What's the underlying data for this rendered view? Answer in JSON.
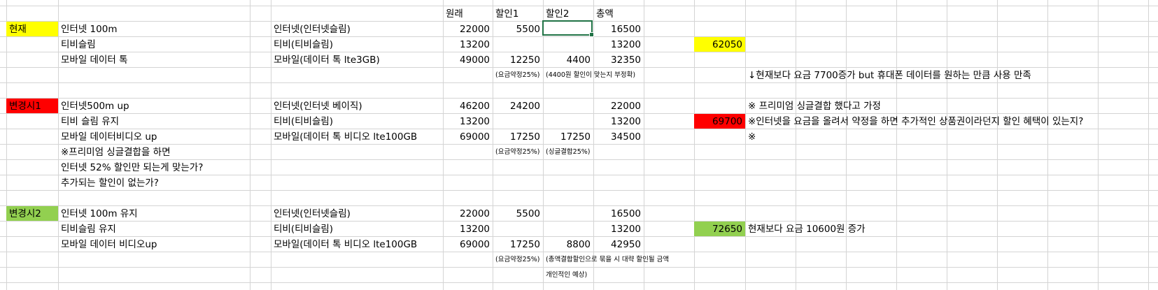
{
  "header": {
    "original": "원래",
    "discount1": "할인1",
    "discount2": "할인2",
    "total": "총액"
  },
  "current": {
    "label": "현재",
    "label_color": "#ffff00",
    "rows": [
      {
        "item": "인터넷 100m",
        "plan": "인터넷(인터넷슬림)",
        "original": "22000",
        "d1": "5500",
        "d2": "",
        "total": "16500"
      },
      {
        "item": "티비슬림",
        "plan": "티비(티비슬림)",
        "original": "13200",
        "d1": "",
        "d2": "",
        "total": "13200"
      },
      {
        "item": "모바일 데이터 톡",
        "plan": "모바일(데이터 톡 lte3GB)",
        "original": "49000",
        "d1": "12250",
        "d2": "4400",
        "total": "32350"
      }
    ],
    "note_d1": "(요금약정25%)",
    "note_d2": "(4400원 할인이 맞는지 부정확)",
    "sum": "62050",
    "comment": "↓현재보다 요금 7700증가 but 휴대폰 데이터를 원하는 만큼 사용 만족"
  },
  "change1": {
    "label": "변경시1",
    "label_color": "#ff0000",
    "rows": [
      {
        "item": "인터넷500m up",
        "plan": "인터넷(인터넷 베이직)",
        "original": "46200",
        "d1": "24200",
        "d2": "",
        "total": "22000"
      },
      {
        "item": "티비 슬림 유지",
        "plan": "티비(티비슬림)",
        "original": "13200",
        "d1": "",
        "d2": "",
        "total": "13200"
      },
      {
        "item": "모바일 데이터비디오 up",
        "plan": "모바일(데이터 톡 비디오 lte100GB",
        "original": "69000",
        "d1": "17250",
        "d2": "17250",
        "total": "34500"
      }
    ],
    "questions": [
      "※프리미엄 싱글결합을 하면",
      "인터넷 52% 할인만 되는게 맞는가?",
      "추가되는 할인이 없는가?"
    ],
    "note_d1": "(요금약정25%)",
    "note_d2": "(싱글결합25%)",
    "sum": "69700",
    "comments": [
      "※ 프리미엄 싱글결합 했다고 가정",
      "※인터넷을 요금을 올려서 약정을 하면 추가적인 상품권이라던지 할인 혜택이 있는지?",
      "※"
    ]
  },
  "change2": {
    "label": "변경시2",
    "label_color": "#92d050",
    "rows": [
      {
        "item": "인터넷 100m 유지",
        "plan": "인터넷(인터넷슬림)",
        "original": "22000",
        "d1": "5500",
        "d2": "",
        "total": "16500"
      },
      {
        "item": "티비슬림 유지",
        "plan": "티비(티비슬림)",
        "original": "13200",
        "d1": "",
        "d2": "",
        "total": "13200"
      },
      {
        "item": "모바일 데이터 비디오up",
        "plan": "모바일(데이터 톡 비디오 lte100GB",
        "original": "69000",
        "d1": "17250",
        "d2": "8800",
        "total": "42950"
      }
    ],
    "note_d1": "(요금약정25%)",
    "note_d2": "(총액결합할인으로 묶을 시 대략 할인될 금액",
    "note_d2_line2": "개인적인 예상)",
    "sum": "72650",
    "comment": "현재보다 요금 10600원 증가"
  }
}
